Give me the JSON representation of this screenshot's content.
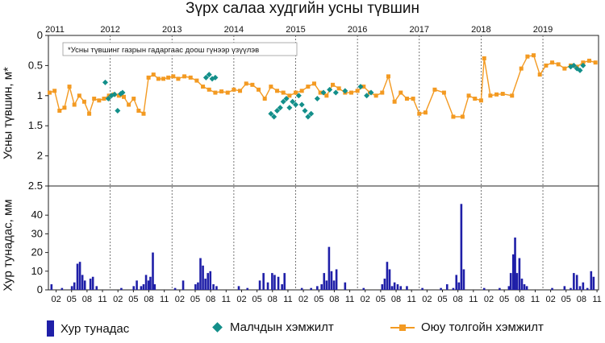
{
  "title": "Зүрх салаа худгийн усны түвшин",
  "colors": {
    "bar": "#1f1fa8",
    "herder": "#138f8a",
    "ot": "#f39a22",
    "grid": "#555555",
    "axis": "#222222"
  },
  "legend": {
    "bar": "Хур тунадас",
    "herder": "Малчдын хэмжилт",
    "ot": "Оюу толгойн хэмжилт"
  },
  "chart_data": [
    {
      "type": "line",
      "title": "Зүрх салаа худгийн усны түвшин",
      "ylabel": "Усны түвшин, м*",
      "note": "*Усны түвшинг газрын гадаргаас доош гүнээр үзүүлэв",
      "ylim": [
        0,
        2.5
      ],
      "y_inverted": true,
      "yticks": [
        "0",
        "0.5",
        "1",
        "1.5",
        "2",
        "2.5"
      ],
      "xlim": [
        2011.0,
        2019.9
      ],
      "year_labels": [
        "2011",
        "2012",
        "2013",
        "2014",
        "2015",
        "2016",
        "2017",
        "2018",
        "2019"
      ],
      "grid": "vertical dashed lines at year boundaries",
      "series": [
        {
          "name": "Оюу толгойн хэмжилт",
          "marker": "square",
          "x": [
            2011.02,
            2011.1,
            2011.18,
            2011.26,
            2011.34,
            2011.42,
            2011.5,
            2011.58,
            2011.66,
            2011.74,
            2011.82,
            2011.9,
            2011.98,
            2012.06,
            2012.14,
            2012.22,
            2012.3,
            2012.38,
            2012.46,
            2012.54,
            2012.62,
            2012.7,
            2012.78,
            2012.86,
            2012.94,
            2013.02,
            2013.1,
            2013.2,
            2013.3,
            2013.4,
            2013.5,
            2013.6,
            2013.7,
            2013.8,
            2013.9,
            2014.0,
            2014.1,
            2014.2,
            2014.3,
            2014.4,
            2014.5,
            2014.6,
            2014.7,
            2014.8,
            2014.9,
            2015.0,
            2015.1,
            2015.2,
            2015.3,
            2015.4,
            2015.5,
            2015.6,
            2015.7,
            2015.8,
            2015.9,
            2016.0,
            2016.1,
            2016.2,
            2016.3,
            2016.4,
            2016.5,
            2016.6,
            2016.7,
            2016.8,
            2016.9,
            2017.0,
            2017.1,
            2017.25,
            2017.4,
            2017.55,
            2017.7,
            2017.8,
            2017.9,
            2018.0,
            2018.05,
            2018.15,
            2018.25,
            2018.35,
            2018.5,
            2018.65,
            2018.75,
            2018.85,
            2018.95,
            2019.05,
            2019.15,
            2019.25,
            2019.35,
            2019.45,
            2019.55,
            2019.65,
            2019.75,
            2019.85
          ],
          "values": [
            0.95,
            0.92,
            1.25,
            1.2,
            0.85,
            1.15,
            1.0,
            1.1,
            1.3,
            1.05,
            1.08,
            1.05,
            1.0,
            0.98,
            1.0,
            1.02,
            1.15,
            1.05,
            1.25,
            1.3,
            0.7,
            0.65,
            0.72,
            0.72,
            0.7,
            0.68,
            0.72,
            0.68,
            0.7,
            0.75,
            0.85,
            0.9,
            0.95,
            0.93,
            0.95,
            0.9,
            0.92,
            0.8,
            0.82,
            0.9,
            1.05,
            0.85,
            0.92,
            0.95,
            1.0,
            0.95,
            0.92,
            0.85,
            0.8,
            0.95,
            1.0,
            0.82,
            0.88,
            0.95,
            0.95,
            0.92,
            0.85,
            0.95,
            1.0,
            0.95,
            0.68,
            1.1,
            0.95,
            1.05,
            1.05,
            1.3,
            1.28,
            0.9,
            0.95,
            1.35,
            1.35,
            1.0,
            1.05,
            1.08,
            0.38,
            1.0,
            0.98,
            0.97,
            1.0,
            0.55,
            0.35,
            0.33,
            0.65,
            0.5,
            0.45,
            0.48,
            0.55,
            0.5,
            0.52,
            0.45,
            0.42,
            0.45
          ]
        },
        {
          "name": "Малчдын хэмжилт",
          "marker": "diamond",
          "x": [
            2011.92,
            2011.97,
            2012.02,
            2012.07,
            2012.12,
            2012.17,
            2012.2,
            2013.55,
            2013.6,
            2013.65,
            2013.7,
            2014.6,
            2014.65,
            2014.7,
            2014.75,
            2014.8,
            2014.85,
            2014.9,
            2014.95,
            2015.0,
            2015.05,
            2015.1,
            2015.15,
            2015.2,
            2015.25,
            2015.35,
            2015.45,
            2015.55,
            2015.65,
            2015.8,
            2016.05,
            2016.15,
            2016.22,
            2019.45,
            2019.5,
            2019.55,
            2019.6,
            2019.65
          ],
          "values": [
            0.78,
            1.05,
            1.0,
            0.98,
            1.25,
            0.97,
            0.95,
            0.7,
            0.65,
            0.72,
            0.7,
            1.3,
            1.35,
            1.25,
            1.2,
            1.1,
            1.05,
            1.2,
            1.1,
            1.15,
            1.0,
            1.15,
            1.25,
            1.35,
            1.3,
            1.05,
            0.95,
            0.9,
            0.95,
            0.92,
            0.85,
            1.0,
            0.95,
            0.52,
            0.5,
            0.55,
            0.58,
            0.5
          ]
        }
      ]
    },
    {
      "type": "bar",
      "ylabel": "Хур тунадас, мм",
      "ylim": [
        0,
        50
      ],
      "yticks": [
        "0",
        "10",
        "20",
        "30",
        "40"
      ],
      "month_labels": [
        "02",
        "05",
        "08",
        "11"
      ],
      "series": [
        {
          "name": "Хур тунадас",
          "x": [
            2011.05,
            2011.22,
            2011.38,
            2011.42,
            2011.47,
            2011.51,
            2011.55,
            2011.59,
            2011.68,
            2011.72,
            2011.78,
            2012.18,
            2012.38,
            2012.43,
            2012.5,
            2012.54,
            2012.58,
            2012.62,
            2012.65,
            2012.69,
            2012.72,
            2013.05,
            2013.18,
            2013.38,
            2013.42,
            2013.46,
            2013.5,
            2013.54,
            2013.58,
            2013.62,
            2013.67,
            2013.72,
            2014.08,
            2014.22,
            2014.42,
            2014.48,
            2014.55,
            2014.62,
            2014.66,
            2014.72,
            2014.78,
            2014.82,
            2015.1,
            2015.25,
            2015.35,
            2015.42,
            2015.46,
            2015.5,
            2015.54,
            2015.58,
            2015.62,
            2015.66,
            2015.8,
            2016.1,
            2016.4,
            2016.44,
            2016.48,
            2016.52,
            2016.56,
            2016.6,
            2016.65,
            2016.7,
            2016.8,
            2017.05,
            2017.35,
            2017.45,
            2017.55,
            2017.6,
            2017.64,
            2017.68,
            2017.72,
            2018.05,
            2018.3,
            2018.45,
            2018.48,
            2018.52,
            2018.55,
            2018.58,
            2018.62,
            2018.66,
            2018.7,
            2018.74,
            2019.15,
            2019.35,
            2019.45,
            2019.5,
            2019.55,
            2019.6,
            2019.65,
            2019.72,
            2019.78,
            2019.82
          ],
          "values": [
            3,
            1,
            2,
            4,
            14,
            15,
            8,
            5,
            6,
            7,
            2,
            1,
            2,
            5,
            2,
            3,
            8,
            5,
            7,
            20,
            3,
            1,
            5,
            3,
            4,
            17,
            13,
            6,
            9,
            10,
            3,
            2,
            2,
            1,
            5,
            9,
            4,
            9,
            8,
            7,
            3,
            9,
            1,
            1,
            2,
            3,
            9,
            5,
            23,
            10,
            5,
            11,
            4,
            1,
            3,
            6,
            15,
            11,
            2,
            4,
            3,
            2,
            2,
            1,
            1,
            3,
            1,
            8,
            4,
            46,
            11,
            1,
            1,
            2,
            9,
            19,
            28,
            9,
            17,
            6,
            3,
            2,
            1,
            2,
            1,
            9,
            8,
            2,
            4,
            1,
            10,
            7
          ]
        }
      ]
    }
  ]
}
